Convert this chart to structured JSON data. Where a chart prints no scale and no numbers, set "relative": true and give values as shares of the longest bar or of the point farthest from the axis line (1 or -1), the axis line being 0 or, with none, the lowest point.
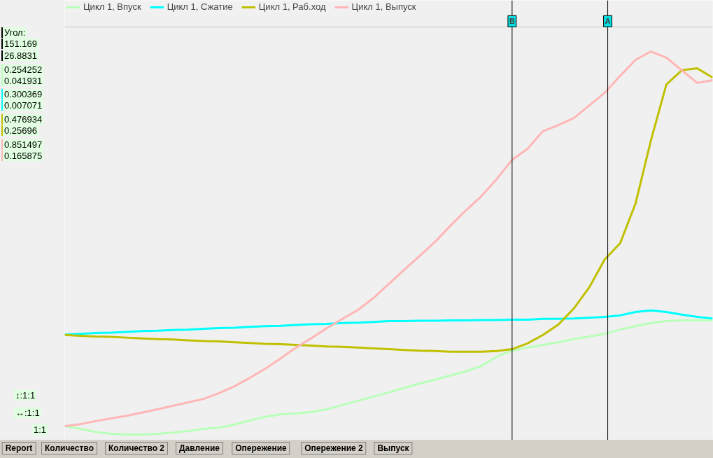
{
  "chart_data": {
    "type": "line",
    "relative": true,
    "tick_labels": false,
    "legend": "top left",
    "categories": [
      null,
      null,
      null,
      null,
      null,
      null,
      null,
      null,
      null,
      null,
      null,
      null,
      null,
      null,
      null,
      null,
      null,
      null,
      null,
      null,
      null,
      null,
      null,
      null,
      null,
      null,
      null,
      null,
      null,
      null,
      null,
      null,
      null,
      null,
      null,
      null,
      null,
      null,
      null,
      null,
      null,
      null,
      null
    ],
    "series": [
      {
        "name": "Цикл 1, Впуск",
        "color": "#b9ffb9",
        "values": [
          0.022,
          0.015,
          0.007,
          0.002,
          0,
          0,
          0.002,
          0.005,
          0.009,
          0.015,
          0.018,
          0.026,
          0.037,
          0.046,
          0.053,
          0.055,
          0.059,
          0.066,
          0.077,
          0.088,
          0.099,
          0.11,
          0.122,
          0.133,
          0.143,
          0.154,
          0.165,
          0.179,
          0.203,
          0.219,
          0.227,
          0.234,
          0.241,
          0.249,
          0.256,
          0.263,
          0.274,
          0.283,
          0.291,
          0.296,
          0.298,
          0.298,
          0.298
        ]
      },
      {
        "name": "Цикл 1, Сжатие",
        "color": "#00ffff",
        "values": [
          0.261,
          0.263,
          0.265,
          0.266,
          0.268,
          0.27,
          0.271,
          0.273,
          0.274,
          0.276,
          0.278,
          0.279,
          0.281,
          0.283,
          0.284,
          0.286,
          0.288,
          0.289,
          0.291,
          0.292,
          0.294,
          0.296,
          0.296,
          0.297,
          0.297,
          0.298,
          0.298,
          0.299,
          0.299,
          0.3,
          0.3,
          0.302,
          0.302,
          0.303,
          0.305,
          0.307,
          0.311,
          0.32,
          0.324,
          0.32,
          0.313,
          0.307,
          0.303
        ]
      },
      {
        "name": "Цикл 1, Раб.ход",
        "color": "#c0c000",
        "values": [
          0.26,
          0.258,
          0.256,
          0.255,
          0.253,
          0.251,
          0.249,
          0.248,
          0.246,
          0.244,
          0.243,
          0.241,
          0.239,
          0.237,
          0.236,
          0.234,
          0.232,
          0.23,
          0.229,
          0.227,
          0.225,
          0.223,
          0.221,
          0.219,
          0.218,
          0.216,
          0.216,
          0.216,
          0.218,
          0.223,
          0.238,
          0.26,
          0.287,
          0.329,
          0.384,
          0.457,
          0.499,
          0.603,
          0.768,
          0.914,
          0.951,
          0.956,
          0.932
        ]
      },
      {
        "name": "Цикл 1, Выпуск",
        "color": "#ffb6b6",
        "values": [
          0.022,
          0.027,
          0.035,
          0.042,
          0.049,
          0.057,
          0.066,
          0.075,
          0.084,
          0.093,
          0.108,
          0.126,
          0.148,
          0.172,
          0.199,
          0.227,
          0.252,
          0.278,
          0.302,
          0.325,
          0.356,
          0.393,
          0.43,
          0.466,
          0.503,
          0.545,
          0.585,
          0.622,
          0.667,
          0.717,
          0.746,
          0.792,
          0.808,
          0.826,
          0.859,
          0.892,
          0.936,
          0.978,
          1.0,
          0.984,
          0.951,
          0.918,
          0.925
        ]
      }
    ],
    "annotations": [
      "Угол:",
      "151.169",
      "26.8831",
      "0.254252",
      "0.041931",
      "0.300369",
      "0.007071",
      "0.476934",
      "0.25696",
      "0.851497",
      "0.165875",
      "↕:1:1",
      "↔:1:1",
      "1:1",
      "Report",
      "Количество",
      "Количество 2",
      "Давление",
      "Опережение",
      "Опережение 2",
      "Выпуск",
      "B",
      "A"
    ]
  }
}
